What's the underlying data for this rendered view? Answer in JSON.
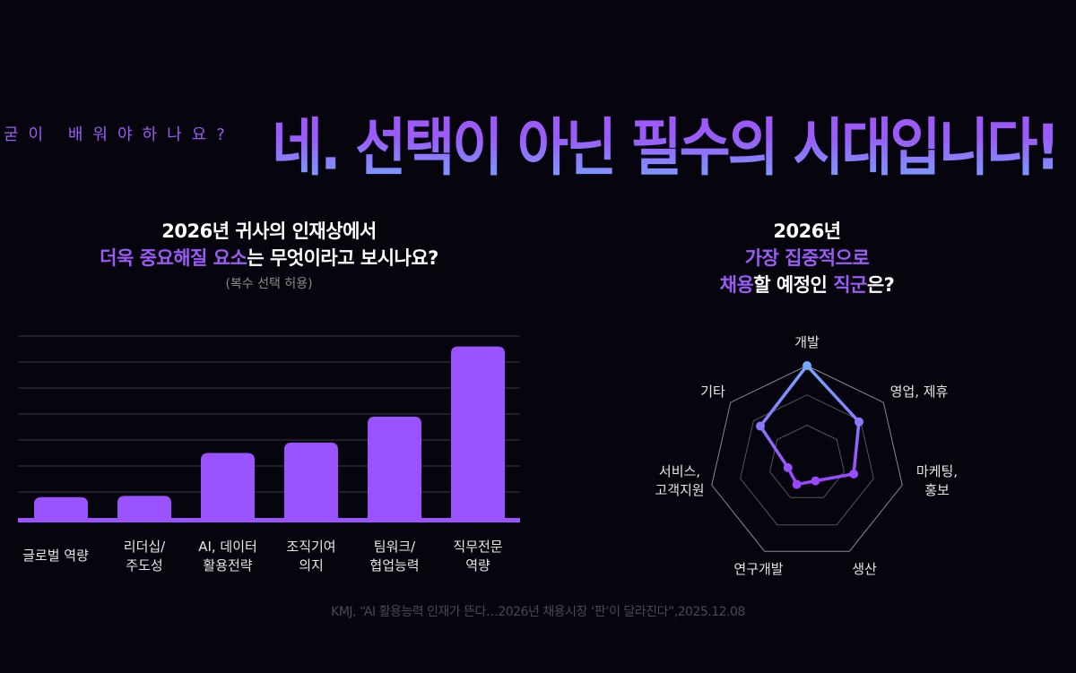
{
  "header": {
    "lead": "굳이 배워야하나요?",
    "headline": "네. 선택이 아닌 필수의 시대입니다!"
  },
  "bar_panel": {
    "title_line1": "2026년 귀사의 인재상에서",
    "title_line2_highlight": "더욱 중요해질 요소",
    "title_line2_rest": "는 무엇이라고 보시나요?",
    "note": "(복수 선택 허용)"
  },
  "radar_panel": {
    "title_line1": "2026년",
    "title_line2": "가장 집중적으로",
    "title_line3_a": "채용",
    "title_line3_b": "할 예정인 ",
    "title_line3_c": "직군",
    "title_line3_d": "은?"
  },
  "source": "KMJ, “AI 활용능력 인재가 뜬다…2026년 채용시장 ‘판’이 달라진다”,2025.12.08",
  "colors": {
    "accent": "#9b5cf6",
    "blue": "#74a8ff",
    "background": "#06040d"
  },
  "chart_data": [
    {
      "type": "bar",
      "categories": [
        [
          "글로벌 역량"
        ],
        [
          "리더십/",
          "주도성"
        ],
        [
          "AI, 데이터",
          "활용전략"
        ],
        [
          "조직기여",
          "의지"
        ],
        [
          "팀워크/",
          "협업능력"
        ],
        [
          "직무전문",
          "역량"
        ]
      ],
      "values": [
        0.8,
        0.85,
        2.5,
        2.9,
        3.9,
        6.6
      ],
      "ylim": [
        0,
        7
      ],
      "grid": true
    },
    {
      "type": "radar",
      "categories": [
        [
          "개발"
        ],
        [
          "영업, 제휴"
        ],
        [
          "마케팅,",
          "홍보"
        ],
        [
          "생산"
        ],
        [
          "연구개발"
        ],
        [
          "서비스,",
          "고객지원"
        ],
        [
          "기타"
        ]
      ],
      "values": [
        1.0,
        0.68,
        0.49,
        0.2,
        0.24,
        0.2,
        0.61
      ],
      "rlim": [
        0,
        1
      ],
      "rings": [
        0.39,
        0.7,
        1.0
      ]
    }
  ]
}
